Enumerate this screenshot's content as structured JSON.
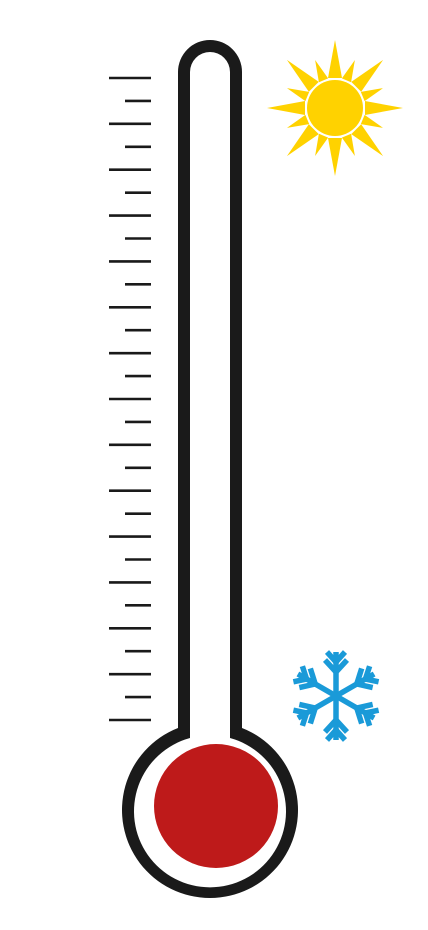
{
  "thermometer": {
    "mercury_level": 0,
    "tick_count": 29,
    "colors": {
      "outline": "#1a1a1a",
      "mercury": "#be1a1a",
      "background": "#ffffff"
    }
  },
  "icons": {
    "hot": {
      "name": "sun-icon",
      "color": "#ffd200"
    },
    "cold": {
      "name": "snowflake-icon",
      "color": "#1a9ad8"
    }
  }
}
